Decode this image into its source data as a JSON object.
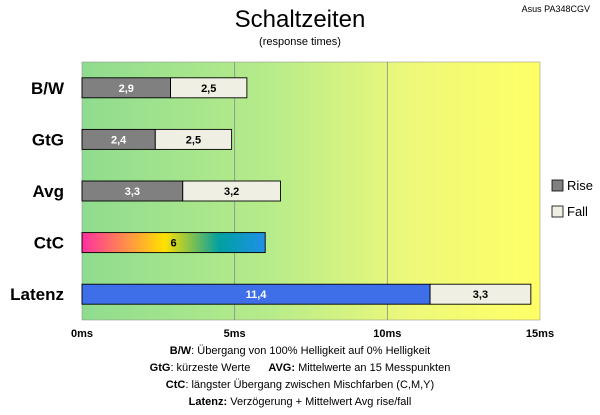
{
  "chart_data": {
    "type": "bar",
    "orientation": "horizontal",
    "stacked": true,
    "title": "Schaltzeiten",
    "subtitle": "(response times)",
    "model": "Asus PA348CGV",
    "categories": [
      "B/W",
      "GtG",
      "Avg",
      "CtC",
      "Latenz"
    ],
    "series": [
      {
        "name": "Rise",
        "values": [
          2.9,
          2.4,
          3.3,
          6,
          11.4
        ]
      },
      {
        "name": "Fall",
        "values": [
          2.5,
          2.5,
          3.2,
          null,
          3.3
        ]
      }
    ],
    "value_labels": [
      [
        "2,9",
        "2,5"
      ],
      [
        "2,4",
        "2,5"
      ],
      [
        "3,3",
        "3,2"
      ],
      [
        "6"
      ],
      [
        "11,4",
        "3,3"
      ]
    ],
    "xlim": [
      0,
      15
    ],
    "xticks": [
      0,
      5,
      10,
      15
    ],
    "xtick_labels": [
      "0ms",
      "5ms",
      "10ms",
      "15ms"
    ],
    "legend_position": "right",
    "grid": true,
    "colors": {
      "rise": "#808080",
      "fall": "#f0efe3",
      "latenz": "#3f6fe8",
      "ctc_gradient": [
        "#ff2fa0",
        "#ffe100",
        "#00a0a0",
        "#2090e8"
      ],
      "bg_left": "#8fdc8f",
      "bg_right": "#ffff66"
    }
  },
  "notes": {
    "line1_key": "B/W",
    "line1_text": ":  Übergang von 100% Helligkeit auf 0% Helligkeit",
    "line2a_key": "GtG",
    "line2a_text": ": kürzeste  Werte",
    "line2b_key": "AVG:",
    "line2b_text": " Mittelwerte  an 15 Messpunkten",
    "line3_key": "CtC",
    "line3_text": ": längster Übergang  zwischen Mischfarben  (C,M,Y)",
    "line4_key": "Latenz:",
    "line4_text": " Verzögerung  + Mittelwert Avg rise/fall"
  }
}
